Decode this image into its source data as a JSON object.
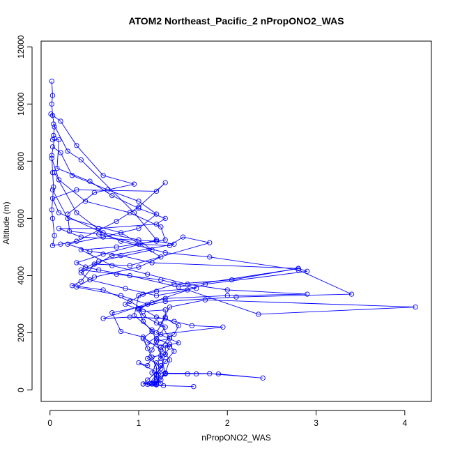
{
  "chart_data": {
    "type": "line",
    "title": "ATOM2 Northeast_Pacific_2 nPropONO2_WAS",
    "xlabel": "nPropONO2_WAS",
    "ylabel": "Altitude (m)",
    "xlim": [
      -0.1,
      4.3
    ],
    "ylim": [
      -400,
      12200
    ],
    "xticks": [
      "0",
      "1",
      "2",
      "3",
      "4"
    ],
    "yticks": [
      "0",
      "2000",
      "4000",
      "6000",
      "8000",
      "10000",
      "12000"
    ],
    "grid": false,
    "legend": "none",
    "marker": "open-circle",
    "color": "#0000ff",
    "series": [
      {
        "values": [
          [
            0.02,
            10800
          ],
          [
            0.03,
            10300
          ],
          [
            0.02,
            10000
          ],
          [
            0.03,
            9600
          ],
          [
            0.05,
            9200
          ],
          [
            0.04,
            8900
          ],
          [
            0.05,
            8800
          ],
          [
            0.02,
            8200
          ],
          [
            0.03,
            7600
          ],
          [
            0.04,
            7100
          ],
          [
            0.02,
            6300
          ],
          [
            0.03,
            6000
          ],
          [
            0.05,
            5400
          ],
          [
            0.03,
            5050
          ],
          [
            0.12,
            5100
          ],
          [
            0.3,
            5200
          ],
          [
            0.75,
            5900
          ],
          [
            1.0,
            6400
          ],
          [
            1.3,
            7250
          ],
          [
            1.2,
            6950
          ],
          [
            0.3,
            7000
          ],
          [
            0.03,
            6700
          ],
          [
            0.1,
            6200
          ],
          [
            0.8,
            5200
          ],
          [
            1.3,
            4800
          ],
          [
            1.8,
            4650
          ],
          [
            2.8,
            4200
          ],
          [
            3.4,
            3350
          ],
          [
            2.1,
            3250
          ],
          [
            1.3,
            3100
          ],
          [
            0.7,
            2700
          ],
          [
            0.8,
            2050
          ],
          [
            1.05,
            1850
          ],
          [
            1.25,
            1400
          ],
          [
            1.25,
            1100
          ],
          [
            1.2,
            950
          ],
          [
            1.15,
            600
          ],
          [
            1.8,
            570
          ],
          [
            2.4,
            420
          ],
          [
            1.9,
            560
          ],
          [
            1.65,
            560
          ],
          [
            1.55,
            560
          ],
          [
            1.3,
            560
          ],
          [
            1.1,
            200
          ],
          [
            1.2,
            200
          ],
          [
            1.28,
            150
          ],
          [
            1.62,
            120
          ]
        ]
      },
      {
        "values": [
          [
            0.01,
            9650
          ],
          [
            0.12,
            9400
          ],
          [
            0.3,
            8550
          ],
          [
            0.6,
            7500
          ],
          [
            0.95,
            7200
          ],
          [
            0.5,
            6900
          ],
          [
            0.2,
            6150
          ],
          [
            0.22,
            5550
          ],
          [
            0.55,
            5450
          ],
          [
            1.0,
            5100
          ],
          [
            1.35,
            5050
          ],
          [
            1.5,
            5350
          ],
          [
            1.8,
            5150
          ],
          [
            0.9,
            4350
          ],
          [
            0.5,
            4400
          ],
          [
            0.35,
            3800
          ],
          [
            0.25,
            3650
          ],
          [
            0.6,
            3500
          ],
          [
            0.9,
            3100
          ],
          [
            1.2,
            2550
          ],
          [
            1.4,
            2400
          ],
          [
            1.6,
            2250
          ],
          [
            1.95,
            2200
          ],
          [
            1.25,
            1950
          ],
          [
            1.1,
            1650
          ],
          [
            1.35,
            1500
          ],
          [
            1.3,
            1250
          ],
          [
            1.15,
            1150
          ],
          [
            1.1,
            850
          ],
          [
            1.0,
            950
          ],
          [
            1.25,
            560
          ],
          [
            1.2,
            300
          ],
          [
            1.05,
            210
          ],
          [
            1.15,
            210
          ]
        ]
      },
      {
        "values": [
          [
            0.04,
            9300
          ],
          [
            0.2,
            8350
          ],
          [
            0.35,
            8050
          ],
          [
            0.95,
            6200
          ],
          [
            1.2,
            5250
          ],
          [
            0.6,
            4750
          ],
          [
            0.3,
            4450
          ],
          [
            0.4,
            4300
          ],
          [
            0.55,
            4200
          ],
          [
            0.9,
            4000
          ],
          [
            1.45,
            3600
          ],
          [
            2.8,
            4250
          ],
          [
            2.9,
            4150
          ],
          [
            1.75,
            3700
          ],
          [
            0.6,
            2500
          ],
          [
            0.9,
            2550
          ],
          [
            1.3,
            2500
          ],
          [
            1.45,
            2250
          ],
          [
            1.4,
            1950
          ],
          [
            1.35,
            1850
          ],
          [
            1.25,
            1500
          ],
          [
            1.35,
            1050
          ],
          [
            1.3,
            600
          ],
          [
            1.25,
            350
          ],
          [
            1.15,
            230
          ],
          [
            1.2,
            180
          ]
        ]
      },
      {
        "values": [
          [
            0.03,
            8750
          ],
          [
            0.1,
            8750
          ],
          [
            0.08,
            7750
          ],
          [
            0.45,
            7300
          ],
          [
            0.7,
            6800
          ],
          [
            1.0,
            6350
          ],
          [
            1.3,
            6000
          ],
          [
            1.2,
            5800
          ],
          [
            0.55,
            5650
          ],
          [
            0.1,
            5650
          ],
          [
            0.35,
            5350
          ],
          [
            1.2,
            5200
          ],
          [
            1.4,
            5100
          ],
          [
            0.7,
            4700
          ],
          [
            0.35,
            4100
          ],
          [
            0.45,
            3850
          ],
          [
            0.85,
            3550
          ],
          [
            1.2,
            3300
          ],
          [
            1.55,
            3500
          ],
          [
            2.35,
            2650
          ],
          [
            4.12,
            2900
          ],
          [
            1.75,
            3150
          ],
          [
            1.35,
            2900
          ],
          [
            1.25,
            2300
          ],
          [
            1.35,
            1800
          ],
          [
            1.2,
            1700
          ],
          [
            1.25,
            1200
          ],
          [
            1.3,
            580
          ],
          [
            1.2,
            230
          ],
          [
            1.18,
            210
          ]
        ]
      },
      {
        "values": [
          [
            0.03,
            8500
          ],
          [
            0.12,
            8300
          ],
          [
            0.25,
            7500
          ],
          [
            0.65,
            7000
          ],
          [
            1.0,
            6600
          ],
          [
            1.2,
            6150
          ],
          [
            1.0,
            5650
          ],
          [
            0.6,
            5350
          ],
          [
            0.2,
            5100
          ],
          [
            0.45,
            4850
          ],
          [
            0.8,
            4700
          ],
          [
            1.15,
            4450
          ],
          [
            2.8,
            4250
          ],
          [
            2.05,
            3850
          ],
          [
            1.4,
            3700
          ],
          [
            1.05,
            3350
          ],
          [
            0.85,
            3000
          ],
          [
            1.05,
            2750
          ],
          [
            1.3,
            2800
          ],
          [
            1.3,
            2550
          ],
          [
            1.2,
            2000
          ],
          [
            1.45,
            1650
          ],
          [
            1.3,
            1550
          ],
          [
            1.3,
            1250
          ],
          [
            1.25,
            750
          ],
          [
            1.1,
            350
          ],
          [
            1.05,
            210
          ]
        ]
      },
      {
        "values": [
          [
            0.02,
            8100
          ],
          [
            0.1,
            7350
          ],
          [
            0.4,
            6600
          ],
          [
            0.9,
            6200
          ],
          [
            1.25,
            5700
          ],
          [
            1.3,
            5250
          ],
          [
            0.75,
            5000
          ],
          [
            0.35,
            4900
          ],
          [
            0.7,
            4350
          ],
          [
            1.1,
            4050
          ],
          [
            1.55,
            3700
          ],
          [
            2.0,
            3500
          ],
          [
            2.9,
            3350
          ],
          [
            2.0,
            3300
          ],
          [
            1.3,
            3200
          ],
          [
            1.15,
            3050
          ],
          [
            1.0,
            2850
          ],
          [
            1.05,
            2600
          ],
          [
            1.2,
            2350
          ],
          [
            1.3,
            2200
          ],
          [
            1.2,
            1800
          ],
          [
            1.35,
            1600
          ],
          [
            1.4,
            1350
          ],
          [
            1.3,
            1000
          ],
          [
            1.2,
            550
          ],
          [
            1.12,
            220
          ]
        ]
      },
      {
        "values": [
          [
            0.05,
            7600
          ],
          [
            0.3,
            6200
          ],
          [
            0.6,
            5500
          ],
          [
            1.0,
            5250
          ],
          [
            1.15,
            4900
          ],
          [
            0.55,
            4500
          ],
          [
            0.35,
            4200
          ],
          [
            0.75,
            4050
          ],
          [
            1.25,
            3850
          ],
          [
            1.65,
            3550
          ],
          [
            1.2,
            3450
          ],
          [
            1.0,
            3300
          ],
          [
            0.95,
            2600
          ],
          [
            1.15,
            2100
          ],
          [
            1.2,
            1700
          ],
          [
            1.15,
            1400
          ],
          [
            1.1,
            1100
          ],
          [
            1.25,
            850
          ],
          [
            1.2,
            500
          ],
          [
            1.15,
            230
          ]
        ]
      },
      {
        "values": [
          [
            0.03,
            7000
          ],
          [
            0.2,
            6000
          ],
          [
            0.8,
            5500
          ],
          [
            1.25,
            4650
          ],
          [
            1.0,
            4300
          ],
          [
            0.5,
            3950
          ],
          [
            0.3,
            3600
          ],
          [
            0.8,
            3300
          ],
          [
            1.1,
            3000
          ],
          [
            1.0,
            2800
          ],
          [
            1.05,
            2400
          ],
          [
            1.15,
            2050
          ],
          [
            1.05,
            1800
          ],
          [
            1.1,
            1450
          ],
          [
            1.15,
            1150
          ],
          [
            1.2,
            800
          ],
          [
            1.2,
            400
          ],
          [
            1.25,
            220
          ]
        ]
      }
    ]
  }
}
